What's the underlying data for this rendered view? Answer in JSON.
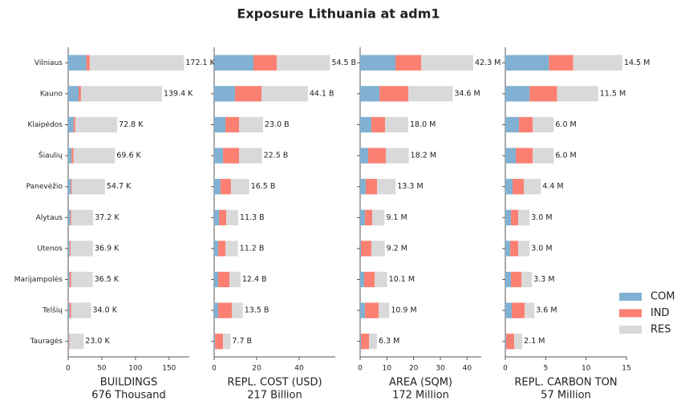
{
  "title": "Exposure Lithuania at adm1",
  "chart_data": [
    {
      "type": "barh",
      "xlabel": "BUILDINGS",
      "xsublabel": "676 Thousand",
      "categories": [
        "Vilniaus",
        "Kauno",
        "Klaipėdos",
        "Šiaulių",
        "Panevėžio",
        "Alytaus",
        "Utenos",
        "Marijampolės",
        "Telšių",
        "Tauragės"
      ],
      "series": [
        {
          "name": "COM",
          "color": "#80b1d3",
          "values": [
            27,
            15.5,
            8,
            5,
            4,
            3,
            2,
            2,
            2,
            1
          ]
        },
        {
          "name": "IND",
          "color": "#fb8072",
          "values": [
            5,
            3.5,
            2.5,
            3,
            1.5,
            1.5,
            1.5,
            2.5,
            2.5,
            1
          ]
        },
        {
          "name": "RES",
          "color": "#d9d9d9",
          "values": [
            140.1,
            120.4,
            62.3,
            61.6,
            49.2,
            32.7,
            33.4,
            32,
            29.5,
            21
          ]
        }
      ],
      "totals": [
        172.1,
        139.4,
        72.8,
        69.6,
        54.7,
        37.2,
        36.9,
        36.5,
        34.0,
        23.0
      ],
      "total_labels": [
        "172.1 K",
        "139.4 K",
        "72.8 K",
        "69.6 K",
        "54.7 K",
        "37.2 K",
        "36.9 K",
        "36.5 K",
        "34.0 K",
        "23.0 K"
      ],
      "xlim": [
        0,
        180
      ],
      "xticks": [
        0,
        50,
        100,
        150
      ]
    },
    {
      "type": "barh",
      "xlabel": "REPL. COST (USD)",
      "xsublabel": "217 Billion",
      "series": [
        {
          "values": [
            18.5,
            9.8,
            5.3,
            4.2,
            3,
            2.3,
            1.9,
            1.9,
            1.9,
            0.4
          ]
        },
        {
          "values": [
            11,
            12.5,
            6.4,
            7.5,
            4.9,
            3.4,
            3.4,
            5.3,
            6.4,
            3.8
          ]
        },
        {
          "values": [
            25,
            21.8,
            11.3,
            10.8,
            8.6,
            5.6,
            5.9,
            5.2,
            5.2,
            3.5
          ]
        }
      ],
      "totals": [
        54.5,
        44.1,
        23.0,
        22.5,
        16.5,
        11.3,
        11.2,
        12.4,
        13.5,
        7.7
      ],
      "total_labels": [
        "54.5 B",
        "44.1 B",
        "23.0 B",
        "22.5 B",
        "16.5 B",
        "11.3 B",
        "11.2 B",
        "12.4 B",
        "13.5 B",
        "7.7 B"
      ],
      "xlim": [
        0,
        57
      ],
      "xticks": [
        0,
        20,
        40
      ]
    },
    {
      "type": "barh",
      "xlabel": "AREA (SQM)",
      "xsublabel": "172 Million",
      "series": [
        {
          "values": [
            13.2,
            7.2,
            4.2,
            3,
            2.1,
            1.8,
            0.3,
            1.5,
            1.8,
            0.3
          ]
        },
        {
          "values": [
            9.6,
            10.8,
            5.1,
            6.6,
            4.2,
            2.7,
            3.9,
            3.9,
            5.1,
            3
          ]
        },
        {
          "values": [
            19.5,
            16.6,
            8.7,
            8.6,
            7,
            4.6,
            5,
            4.7,
            4,
            3
          ]
        }
      ],
      "totals": [
        42.3,
        34.6,
        18.0,
        18.2,
        13.3,
        9.1,
        9.2,
        10.1,
        10.9,
        6.3
      ],
      "total_labels": [
        "42.3 M",
        "34.6 M",
        "18.0 M",
        "18.2 M",
        "13.3 M",
        "9.1 M",
        "9.2 M",
        "10.1 M",
        "10.9 M",
        "6.3 M"
      ],
      "xlim": [
        0,
        45.3
      ],
      "xticks": [
        0,
        10,
        20,
        30,
        40
      ]
    },
    {
      "type": "barh",
      "xlabel": "REPL. CARBON TON",
      "xsublabel": "57 Million",
      "series": [
        {
          "values": [
            5.4,
            3,
            1.7,
            1.3,
            0.9,
            0.7,
            0.6,
            0.7,
            0.8,
            0.1
          ]
        },
        {
          "values": [
            3,
            3.4,
            1.7,
            2.1,
            1.4,
            0.9,
            1,
            1.3,
            1.6,
            1
          ]
        },
        {
          "values": [
            6.1,
            5.1,
            2.6,
            2.6,
            2.1,
            1.4,
            1.4,
            1.3,
            1.2,
            1
          ]
        }
      ],
      "totals": [
        14.5,
        11.5,
        6.0,
        6.0,
        4.4,
        3.0,
        3.0,
        3.3,
        3.6,
        2.1
      ],
      "total_labels": [
        "14.5 M",
        "11.5 M",
        "6.0 M",
        "6.0 M",
        "4.4 M",
        "3.0 M",
        "3.0 M",
        "3.3 M",
        "3.6 M",
        "2.1 M"
      ],
      "xlim": [
        0,
        15
      ],
      "xticks": [
        0,
        5,
        10,
        15
      ]
    }
  ]
}
